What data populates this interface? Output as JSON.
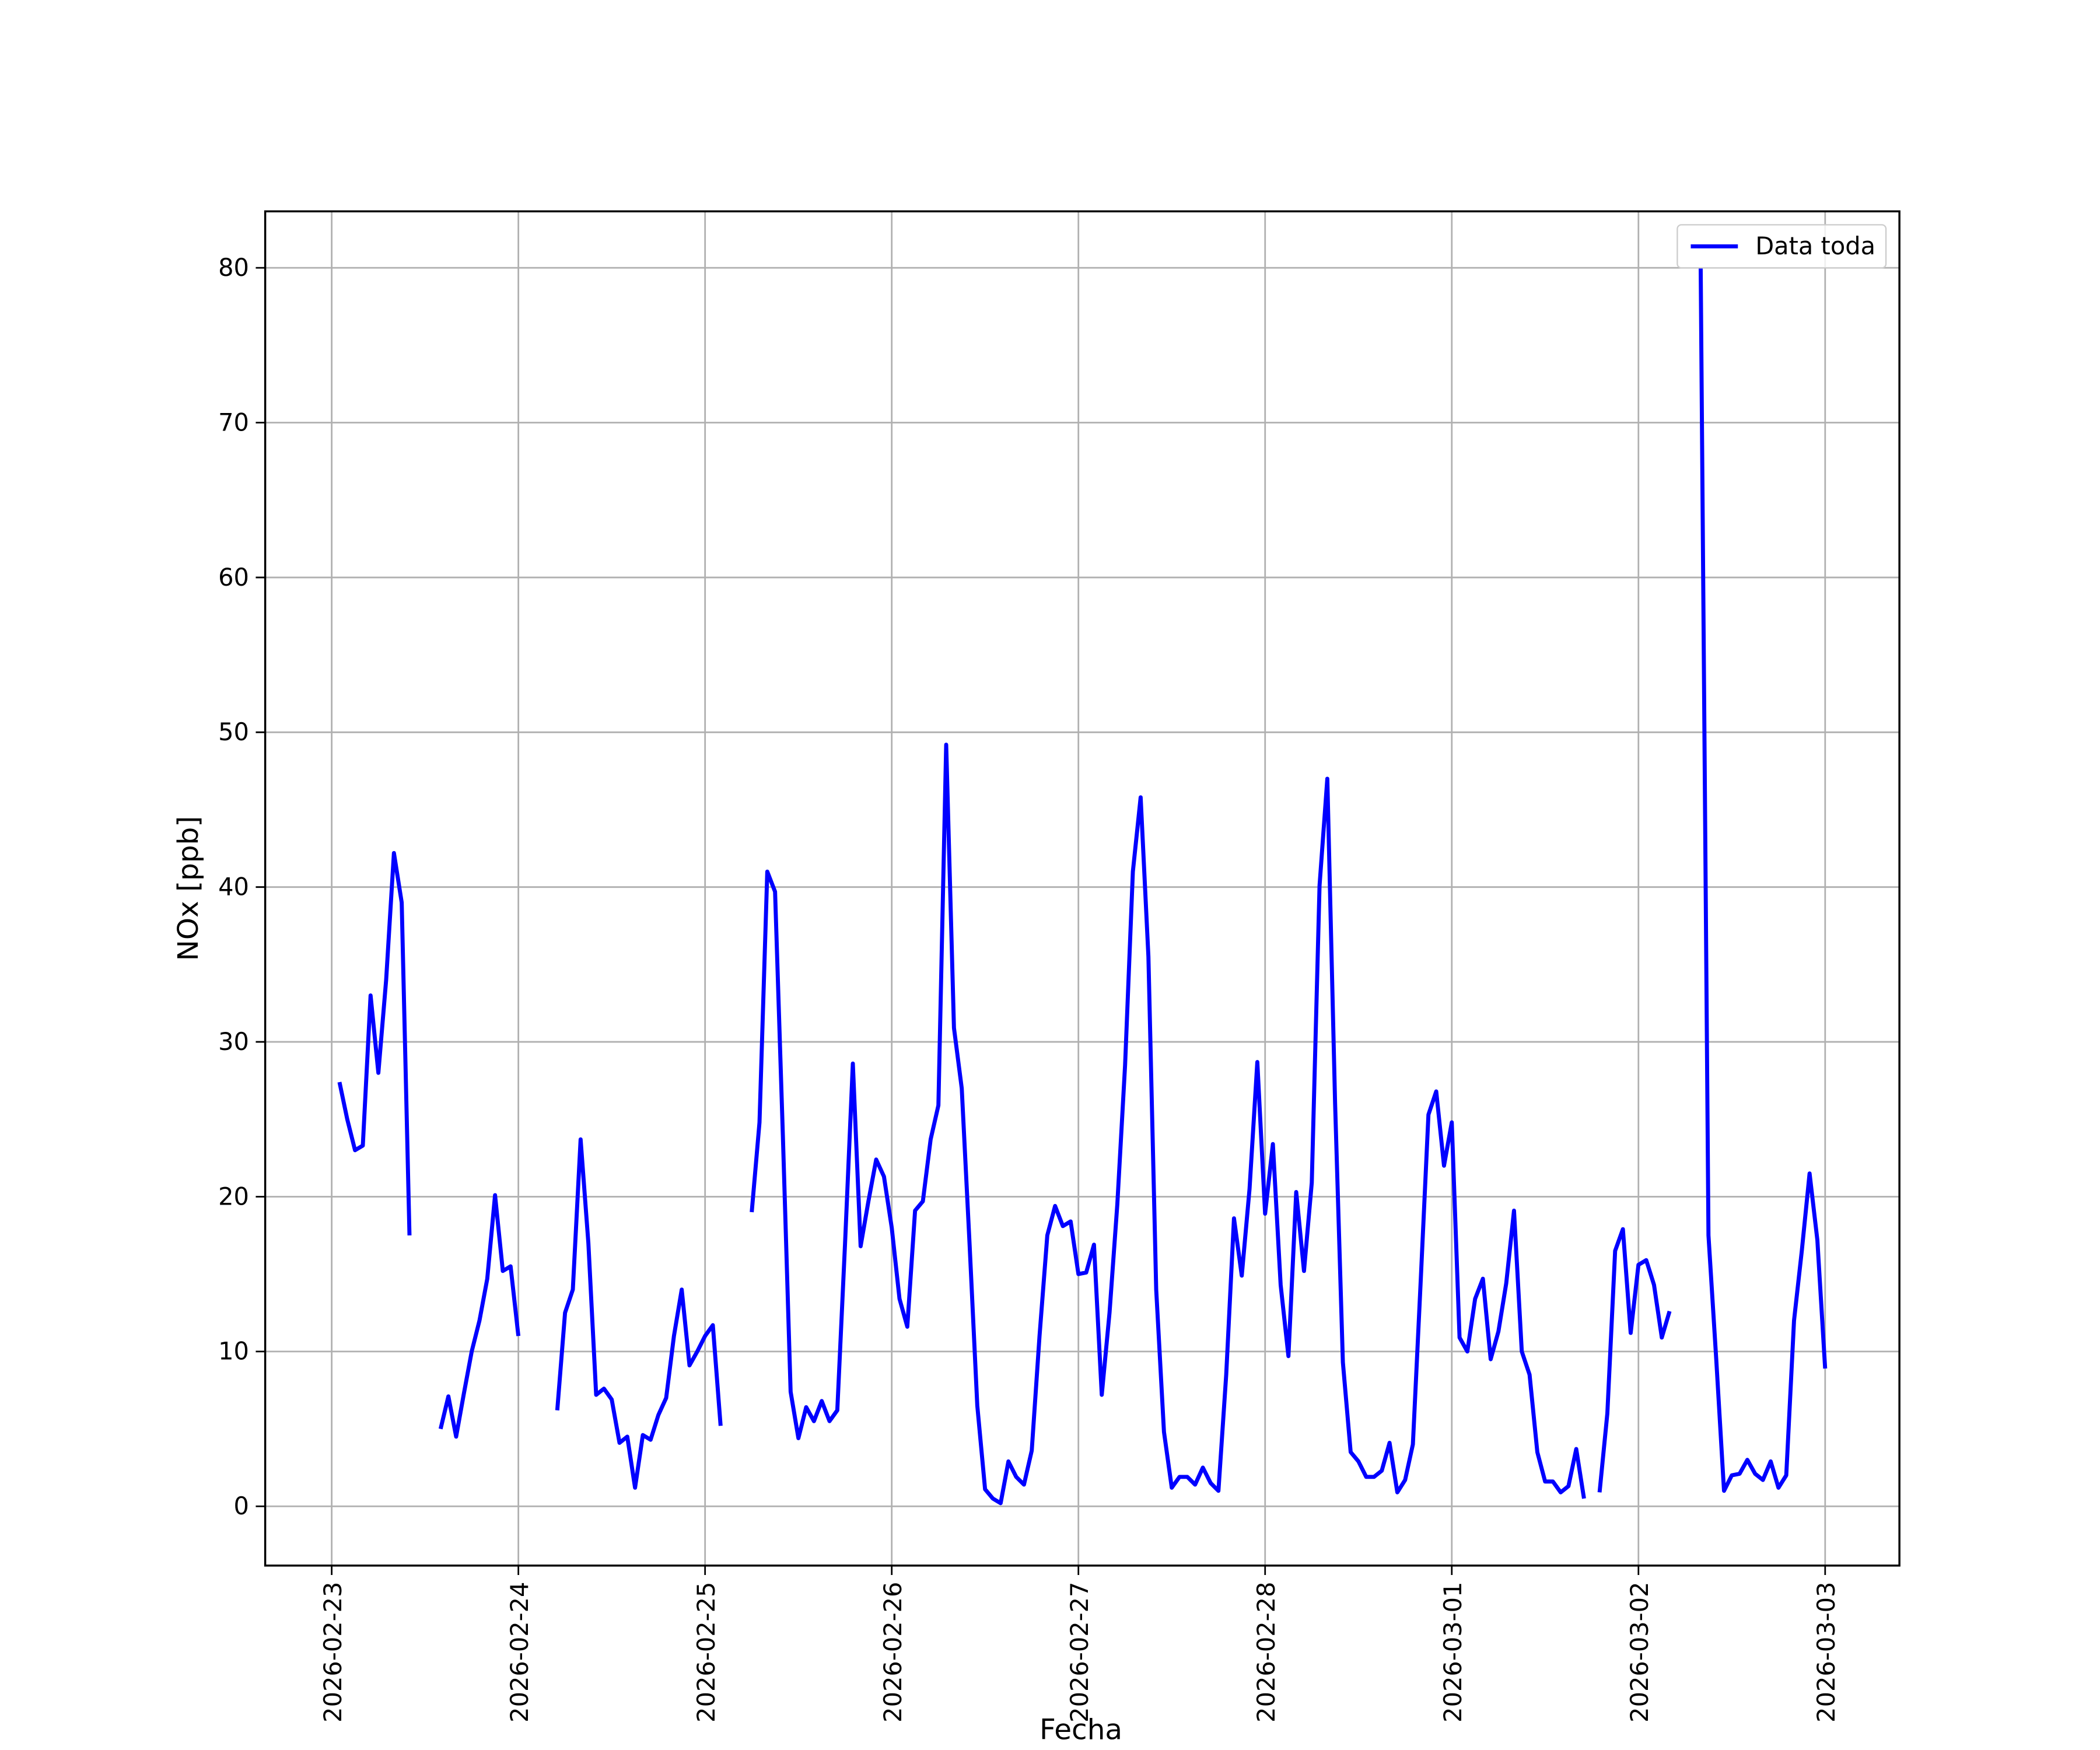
{
  "chart_data": {
    "type": "line",
    "xlabel": "Fecha",
    "ylabel": "NOx [ppb]",
    "x": [
      1,
      2,
      3,
      4,
      5,
      6,
      7,
      8,
      9,
      10,
      11,
      12,
      13,
      14,
      15,
      16,
      17,
      18,
      19,
      20,
      21,
      22,
      23,
      24,
      25,
      26,
      27,
      28,
      29,
      30,
      31,
      32,
      33,
      34,
      35,
      36,
      37,
      38,
      39,
      40,
      41,
      42,
      43,
      44,
      45,
      46,
      47,
      48,
      49,
      50,
      51,
      52,
      53,
      54,
      55,
      56,
      57,
      58,
      59,
      60,
      61,
      62,
      63,
      64,
      65,
      66,
      67,
      68,
      69,
      70,
      71,
      72,
      73,
      74,
      75,
      76,
      77,
      78,
      79,
      80,
      81,
      82,
      83,
      84,
      85,
      86,
      87,
      88,
      89,
      90,
      91,
      92,
      93,
      94,
      95,
      96,
      97,
      98,
      99,
      100,
      101,
      102,
      103,
      104,
      105,
      106,
      107,
      108,
      109,
      110,
      111,
      112,
      113,
      114,
      115,
      116,
      117,
      118,
      119,
      120,
      121,
      122,
      123,
      124,
      125,
      126,
      127,
      128,
      129,
      130,
      131,
      132,
      133,
      134,
      135,
      136,
      137,
      138,
      139,
      140,
      141,
      142,
      143,
      144,
      145,
      146,
      147,
      148,
      149,
      150,
      151,
      152,
      153,
      154,
      155,
      156,
      157,
      158,
      159,
      160,
      161,
      162,
      163,
      164,
      165,
      166,
      167,
      168,
      169,
      170,
      171,
      172,
      173,
      174,
      175,
      176,
      177,
      178,
      179,
      180,
      181,
      182,
      183,
      184,
      185,
      186,
      187,
      188,
      189,
      190,
      191,
      192
    ],
    "series": [
      {
        "name": "Data toda",
        "color": "#0000ff",
        "values": [
          27.4,
          25,
          23,
          23.3,
          33,
          28,
          34,
          42.2,
          39,
          17.5,
          null,
          null,
          null,
          5,
          7.1,
          4.5,
          7.3,
          10,
          12,
          14.7,
          20.1,
          15.2,
          15.5,
          11,
          null,
          null,
          null,
          null,
          6.2,
          12.5,
          14,
          23.7,
          17,
          7.2,
          7.6,
          6.9,
          4.1,
          4.5,
          1.2,
          4.6,
          4.3,
          5.9,
          7,
          11,
          14,
          9.1,
          10,
          11,
          11.7,
          5.2,
          null,
          null,
          null,
          19,
          24.8,
          41,
          39.7,
          24,
          7.4,
          4.4,
          6.4,
          5.5,
          6.8,
          5.5,
          6.2,
          17,
          28.6,
          16.8,
          19.7,
          22.4,
          21.3,
          18,
          13.4,
          11.6,
          19.1,
          19.7,
          23.7,
          25.9,
          49.2,
          30.9,
          27,
          17,
          6.5,
          1.1,
          0.5,
          0.2,
          2.9,
          1.9,
          1.4,
          3.6,
          11,
          17.5,
          19.4,
          18.1,
          18.4,
          15,
          15.1,
          16.9,
          7.2,
          12.5,
          19.5,
          28.5,
          41,
          45.8,
          35.5,
          14,
          4.8,
          1.2,
          1.9,
          1.9,
          1.4,
          2.5,
          1.5,
          1,
          8.5,
          18.6,
          14.9,
          20.5,
          28.7,
          18.9,
          23.4,
          14.3,
          9.7,
          20.3,
          15.2,
          20.9,
          40.1,
          47,
          26,
          9.3,
          3.5,
          2.9,
          1.9,
          1.9,
          2.3,
          4.1,
          0.9,
          1.7,
          4,
          14.5,
          25.3,
          26.8,
          22,
          24.8,
          10.9,
          10,
          13.4,
          14.7,
          9.5,
          11.3,
          14.4,
          19.1,
          10,
          8.5,
          3.5,
          1.6,
          1.6,
          0.9,
          1.3,
          3.7,
          0.5,
          null,
          0.9,
          6,
          16.5,
          17.9,
          11.2,
          15.6,
          15.9,
          14.3,
          10.9,
          12.6,
          null,
          null,
          null,
          80,
          17.5,
          9.5,
          1,
          2,
          2.1,
          3,
          2.1,
          1.7,
          2.9,
          1.2,
          2,
          12,
          16.5,
          21.5,
          17.2,
          8.9
        ]
      }
    ],
    "xlim": [
      -8.55,
      201.55
    ],
    "xticks": [
      {
        "value": 0,
        "label": "2026-02-23"
      },
      {
        "value": 24,
        "label": "2026-02-24"
      },
      {
        "value": 48,
        "label": "2026-02-25"
      },
      {
        "value": 72,
        "label": "2026-02-26"
      },
      {
        "value": 96,
        "label": "2026-02-27"
      },
      {
        "value": 120,
        "label": "2026-02-28"
      },
      {
        "value": 144,
        "label": "2026-03-01"
      },
      {
        "value": 168,
        "label": "2026-03-02"
      },
      {
        "value": 192,
        "label": "2026-03-03"
      }
    ],
    "ylim": [
      -3.83,
      83.65
    ],
    "yticks": [
      0,
      10,
      20,
      30,
      40,
      50,
      60,
      70,
      80
    ],
    "grid": true,
    "legend": "upper right"
  }
}
